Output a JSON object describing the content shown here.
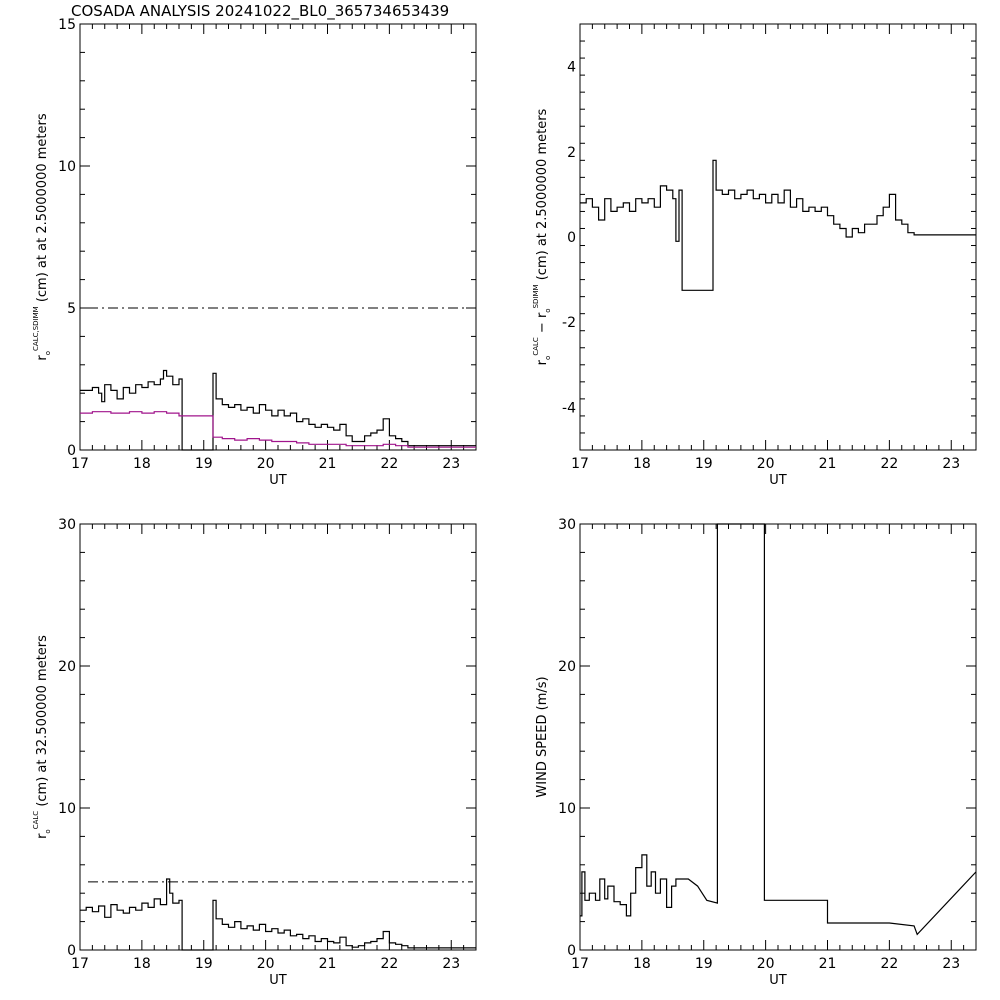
{
  "title": "COSADA ANALYSIS 20241022_BL0_365734653439",
  "colors": {
    "primary": "#000000",
    "secondary": "#a0148c"
  },
  "chart_data": [
    {
      "type": "line",
      "xlabel": "UT",
      "xlim": [
        17,
        23.4
      ],
      "ylim": [
        0,
        15
      ],
      "xticks": [
        "17",
        "18",
        "19",
        "20",
        "21",
        "22",
        "23"
      ],
      "yticks": [
        "0",
        "5",
        "10",
        "15"
      ],
      "ylabel": {
        "base": "r",
        "sub": "o",
        "sup": "CALC,SDIMM",
        "rest": " (cm)  at  at 2.5000000 meters"
      },
      "reference_line": 5,
      "series": [
        {
          "color": "#000000",
          "step": true,
          "x": [
            17.0,
            17.1,
            17.2,
            17.3,
            17.35,
            17.4,
            17.5,
            17.6,
            17.7,
            17.8,
            17.9,
            18.0,
            18.1,
            18.2,
            18.3,
            18.35,
            18.4,
            18.5,
            18.6,
            18.65,
            19.1,
            19.15,
            19.2,
            19.3,
            19.4,
            19.5,
            19.6,
            19.7,
            19.8,
            19.9,
            20.0,
            20.1,
            20.2,
            20.3,
            20.4,
            20.5,
            20.6,
            20.7,
            20.8,
            20.9,
            21.0,
            21.1,
            21.2,
            21.3,
            21.4,
            21.5,
            21.6,
            21.7,
            21.8,
            21.9,
            22.0,
            22.1,
            22.2,
            22.3,
            22.4,
            23.4
          ],
          "y": [
            2.1,
            2.1,
            2.2,
            2.0,
            1.7,
            2.3,
            2.1,
            1.8,
            2.2,
            2.0,
            2.3,
            2.2,
            2.4,
            2.3,
            2.5,
            2.8,
            2.6,
            2.3,
            2.5,
            0.0,
            0.0,
            2.7,
            1.8,
            1.6,
            1.5,
            1.6,
            1.4,
            1.5,
            1.3,
            1.6,
            1.4,
            1.2,
            1.4,
            1.2,
            1.3,
            1.0,
            1.1,
            0.9,
            0.8,
            0.9,
            0.8,
            0.7,
            0.9,
            0.5,
            0.3,
            0.3,
            0.5,
            0.6,
            0.7,
            1.1,
            0.5,
            0.4,
            0.3,
            0.15,
            0.15,
            0.15
          ]
        },
        {
          "color": "#a0148c",
          "step": true,
          "x": [
            17.0,
            17.2,
            17.5,
            17.8,
            18.0,
            18.2,
            18.4,
            18.6,
            19.1,
            19.15,
            19.3,
            19.5,
            19.7,
            19.9,
            20.1,
            20.3,
            20.5,
            20.7,
            21.0,
            21.3,
            21.6,
            21.9,
            22.1,
            22.3,
            22.4,
            23.4
          ],
          "y": [
            1.3,
            1.35,
            1.3,
            1.35,
            1.3,
            1.35,
            1.3,
            1.2,
            1.2,
            0.45,
            0.4,
            0.35,
            0.4,
            0.35,
            0.3,
            0.3,
            0.25,
            0.2,
            0.2,
            0.15,
            0.15,
            0.2,
            0.15,
            0.1,
            0.1,
            0.1
          ]
        }
      ]
    },
    {
      "type": "line",
      "xlabel": "UT",
      "xlim": [
        17,
        23.4
      ],
      "ylim": [
        -5,
        5
      ],
      "xticks": [
        "17",
        "18",
        "19",
        "20",
        "21",
        "22",
        "23"
      ],
      "yticks": [
        "-4",
        "-2",
        "0",
        "2",
        "4"
      ],
      "ylabel": {
        "base": "r",
        "sub": "o",
        "sup": "CALC",
        "mid": " − r",
        "sub2": "o",
        "sup2": "SDIMM",
        "rest": " (cm)  at  2.5000000 meters"
      },
      "series": [
        {
          "color": "#000000",
          "step": true,
          "x": [
            17.0,
            17.1,
            17.2,
            17.3,
            17.4,
            17.5,
            17.6,
            17.7,
            17.8,
            17.9,
            18.0,
            18.1,
            18.2,
            18.3,
            18.4,
            18.5,
            18.55,
            18.6,
            18.65,
            19.1,
            19.15,
            19.2,
            19.3,
            19.4,
            19.5,
            19.6,
            19.7,
            19.8,
            19.9,
            20.0,
            20.1,
            20.2,
            20.3,
            20.4,
            20.5,
            20.6,
            20.7,
            20.8,
            20.9,
            21.0,
            21.1,
            21.2,
            21.3,
            21.4,
            21.5,
            21.6,
            21.7,
            21.8,
            21.9,
            22.0,
            22.1,
            22.2,
            22.3,
            22.4,
            23.4
          ],
          "y": [
            0.8,
            0.9,
            0.7,
            0.4,
            0.9,
            0.6,
            0.7,
            0.8,
            0.6,
            0.9,
            0.8,
            0.9,
            0.7,
            1.2,
            1.1,
            0.9,
            -0.1,
            1.1,
            -1.25,
            -1.25,
            1.8,
            1.1,
            1.0,
            1.1,
            0.9,
            1.0,
            1.1,
            0.9,
            1.0,
            0.8,
            1.0,
            0.8,
            1.1,
            0.7,
            0.9,
            0.6,
            0.7,
            0.6,
            0.7,
            0.5,
            0.3,
            0.2,
            0.0,
            0.2,
            0.1,
            0.3,
            0.3,
            0.5,
            0.7,
            1.0,
            0.4,
            0.3,
            0.1,
            0.05,
            0.05
          ]
        }
      ]
    },
    {
      "type": "line",
      "xlabel": "UT",
      "xlim": [
        17,
        23.4
      ],
      "ylim": [
        0,
        30
      ],
      "xticks": [
        "17",
        "18",
        "19",
        "20",
        "21",
        "22",
        "23"
      ],
      "yticks": [
        "0",
        "10",
        "20",
        "30"
      ],
      "ylabel": {
        "base": "r",
        "sub": "o",
        "sup": "CALC",
        "rest": " (cm)  at  32.500000 meters"
      },
      "reference_line": 4.8,
      "series": [
        {
          "color": "#000000",
          "step": true,
          "x": [
            17.0,
            17.1,
            17.2,
            17.3,
            17.4,
            17.5,
            17.6,
            17.7,
            17.8,
            17.9,
            18.0,
            18.1,
            18.2,
            18.3,
            18.4,
            18.45,
            18.5,
            18.6,
            18.65,
            19.1,
            19.15,
            19.2,
            19.3,
            19.4,
            19.5,
            19.6,
            19.7,
            19.8,
            19.9,
            20.0,
            20.1,
            20.2,
            20.3,
            20.4,
            20.5,
            20.6,
            20.7,
            20.8,
            20.9,
            21.0,
            21.1,
            21.2,
            21.3,
            21.4,
            21.5,
            21.6,
            21.7,
            21.8,
            21.9,
            22.0,
            22.1,
            22.2,
            22.3,
            22.4,
            23.4
          ],
          "y": [
            2.8,
            3.0,
            2.7,
            3.1,
            2.3,
            3.2,
            2.8,
            2.6,
            3.0,
            2.8,
            3.3,
            3.0,
            3.6,
            3.2,
            5.0,
            4.0,
            3.3,
            3.5,
            0.0,
            0.0,
            3.5,
            2.2,
            1.8,
            1.6,
            2.0,
            1.5,
            1.7,
            1.4,
            1.8,
            1.3,
            1.5,
            1.2,
            1.4,
            1.0,
            1.1,
            0.8,
            1.0,
            0.6,
            0.8,
            0.6,
            0.5,
            0.9,
            0.3,
            0.2,
            0.3,
            0.5,
            0.6,
            0.8,
            1.3,
            0.5,
            0.4,
            0.3,
            0.15,
            0.15,
            0.15
          ]
        }
      ]
    },
    {
      "type": "line",
      "xlabel": "UT",
      "xlim": [
        17,
        23.4
      ],
      "ylim": [
        0,
        30
      ],
      "xticks": [
        "17",
        "18",
        "19",
        "20",
        "21",
        "22",
        "23"
      ],
      "yticks": [
        "0",
        "10",
        "20",
        "30"
      ],
      "ylabel": {
        "rest": "WIND SPEED (m/s)"
      },
      "series": [
        {
          "color": "#000000",
          "step": false,
          "x": [
            17.0,
            17.03,
            17.03,
            17.08,
            17.08,
            17.15,
            17.15,
            17.25,
            17.25,
            17.32,
            17.32,
            17.4,
            17.4,
            17.45,
            17.45,
            17.55,
            17.55,
            17.65,
            17.65,
            17.75,
            17.75,
            17.82,
            17.82,
            17.9,
            17.9,
            18.0,
            18.0,
            18.08,
            18.08,
            18.15,
            18.15,
            18.22,
            18.22,
            18.3,
            18.3,
            18.4,
            18.4,
            18.48,
            18.48,
            18.55,
            18.55,
            18.65,
            18.75,
            18.9,
            19.05,
            19.22,
            19.22,
            19.98,
            19.98,
            21.0,
            21.0,
            22.0,
            22.4,
            22.45,
            23.4
          ],
          "y": [
            2.4,
            2.4,
            5.5,
            5.5,
            3.5,
            3.5,
            4.0,
            4.0,
            3.5,
            3.5,
            5.0,
            5.0,
            3.6,
            3.6,
            4.5,
            4.5,
            3.4,
            3.4,
            3.2,
            3.2,
            2.4,
            2.4,
            4.0,
            4.0,
            5.8,
            5.8,
            6.7,
            6.7,
            4.5,
            4.5,
            5.5,
            5.5,
            4.0,
            4.0,
            5.0,
            5.0,
            3.0,
            3.0,
            4.5,
            4.5,
            5.0,
            5.0,
            5.0,
            4.5,
            3.5,
            3.3,
            30.0,
            30.0,
            3.5,
            3.5,
            1.9,
            1.9,
            1.7,
            1.1,
            5.5
          ]
        }
      ]
    }
  ]
}
